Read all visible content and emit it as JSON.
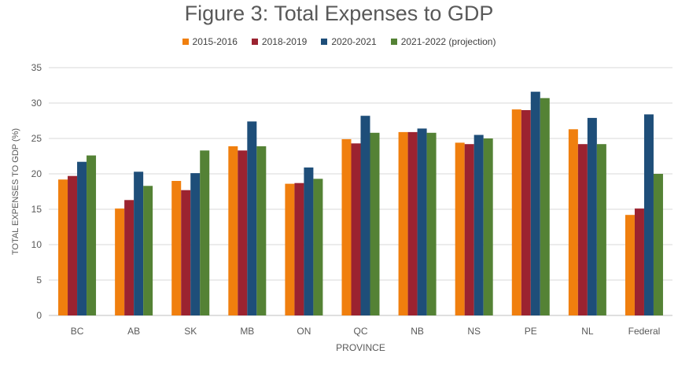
{
  "chart_data": {
    "type": "bar",
    "title": "Figure 3: Total Expenses to GDP",
    "xlabel": "PROVINCE",
    "ylabel": "TOTAL EXPENSES TO GDP (%)",
    "ylim": [
      0,
      35
    ],
    "yticks": [
      0,
      5,
      10,
      15,
      20,
      25,
      30,
      35
    ],
    "grid": true,
    "legend_position": "top",
    "categories": [
      "BC",
      "AB",
      "SK",
      "MB",
      "ON",
      "QC",
      "NB",
      "NS",
      "PE",
      "NL",
      "Federal"
    ],
    "series": [
      {
        "name": "2015-2016",
        "color": "#f07f0e",
        "values": [
          19.2,
          15.1,
          19.0,
          23.9,
          18.6,
          24.9,
          25.9,
          24.4,
          29.1,
          26.3,
          14.2
        ]
      },
      {
        "name": "2018-2019",
        "color": "#9b2330",
        "values": [
          19.7,
          16.3,
          17.7,
          23.3,
          18.7,
          24.3,
          25.9,
          24.2,
          29.0,
          24.2,
          15.1
        ]
      },
      {
        "name": "2020-2021",
        "color": "#1e4e79",
        "values": [
          21.7,
          20.3,
          20.1,
          27.4,
          20.9,
          28.2,
          26.4,
          25.5,
          31.6,
          27.9,
          28.4
        ]
      },
      {
        "name": "2021-2022 (projection)",
        "color": "#548235",
        "values": [
          22.6,
          18.3,
          23.3,
          23.9,
          19.3,
          25.8,
          25.8,
          25.0,
          30.7,
          24.2,
          20.0
        ]
      }
    ]
  }
}
